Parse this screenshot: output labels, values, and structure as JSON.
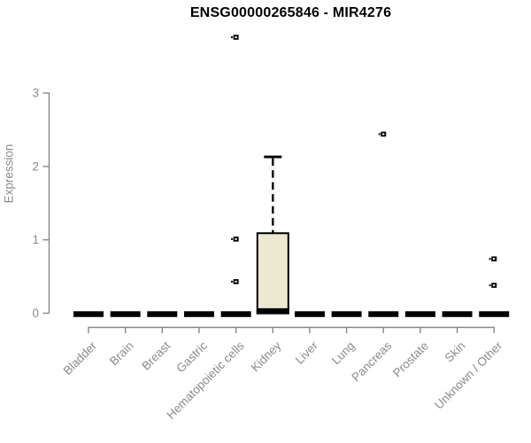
{
  "chart_data": {
    "type": "boxplot",
    "title": "ENSG00000265846 - MIR4276",
    "ylabel": "Expression",
    "xlabel": "",
    "ylim": [
      0,
      3
    ],
    "yticks": [
      0,
      1,
      2,
      3
    ],
    "legend": "none",
    "grid": false,
    "categories": [
      "Bladder",
      "Brain",
      "Breast",
      "Gastric",
      "Hematopoietic cells",
      "Kidney",
      "Liver",
      "Lung",
      "Pancreas",
      "Prostate",
      "Skin",
      "Unknown / Other"
    ],
    "series": [
      {
        "category": "Bladder",
        "whisker_low": 0,
        "q1": 0,
        "median": 0,
        "q3": 0,
        "whisker_high": 0,
        "outliers": []
      },
      {
        "category": "Brain",
        "whisker_low": 0,
        "q1": 0,
        "median": 0,
        "q3": 0,
        "whisker_high": 0,
        "outliers": []
      },
      {
        "category": "Breast",
        "whisker_low": 0,
        "q1": 0,
        "median": 0,
        "q3": 0,
        "whisker_high": 0,
        "outliers": []
      },
      {
        "category": "Gastric",
        "whisker_low": 0,
        "q1": 0,
        "median": 0,
        "q3": 0,
        "whisker_high": 0,
        "outliers": []
      },
      {
        "category": "Hematopoietic cells",
        "whisker_low": 0,
        "q1": 0,
        "median": 0,
        "q3": 0,
        "whisker_high": 0,
        "outliers": [
          3.76,
          1.01,
          0.43
        ]
      },
      {
        "category": "Kidney",
        "whisker_low": 0,
        "q1": 0,
        "median": 0,
        "q3": 1.09,
        "whisker_high": 2.13,
        "outliers": []
      },
      {
        "category": "Liver",
        "whisker_low": 0,
        "q1": 0,
        "median": 0,
        "q3": 0,
        "whisker_high": 0,
        "outliers": []
      },
      {
        "category": "Lung",
        "whisker_low": 0,
        "q1": 0,
        "median": 0,
        "q3": 0,
        "whisker_high": 0,
        "outliers": []
      },
      {
        "category": "Pancreas",
        "whisker_low": 0,
        "q1": 0,
        "median": 0,
        "q3": 0,
        "whisker_high": 0,
        "outliers": [
          2.44
        ]
      },
      {
        "category": "Prostate",
        "whisker_low": 0,
        "q1": 0,
        "median": 0,
        "q3": 0,
        "whisker_high": 0,
        "outliers": []
      },
      {
        "category": "Skin",
        "whisker_low": 0,
        "q1": 0,
        "median": 0,
        "q3": 0,
        "whisker_high": 0,
        "outliers": []
      },
      {
        "category": "Unknown / Other",
        "whisker_low": 0,
        "q1": 0,
        "median": 0,
        "q3": 0,
        "whisker_high": 0,
        "outliers": [
          0.74,
          0.38
        ]
      }
    ],
    "colors": {
      "box_fill": "#EDE8D0",
      "box_stroke": "#000000",
      "axis_line": "#878787",
      "tick_label": "#8A8A8A",
      "title_color": "#000000",
      "background": "#FFFFFF"
    }
  }
}
